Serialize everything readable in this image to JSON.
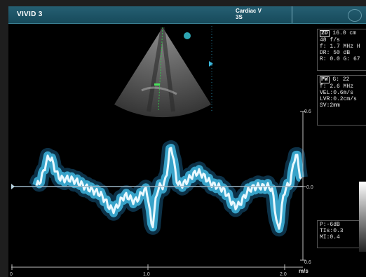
{
  "header": {
    "brand": "VIVID 3",
    "probe_line1": "Cardiac V",
    "probe_line2": "3S"
  },
  "panel_2d": {
    "mode": "2D",
    "depth": "16.0 cm",
    "frame_rate": "48 f/s",
    "freq": "f: 1.7 MHz H",
    "dr": "DR: 50 dB",
    "rg": "R: 0.0   G: 67"
  },
  "panel_pw": {
    "mode": "PW",
    "gain": "G: 22",
    "freq": "f: 2.6 MHz",
    "vel": "VEL:0.6m/s",
    "lvr": "LVR:0.2cm/s",
    "sv": "SV:2mm"
  },
  "output": {
    "p": "P:-6dB",
    "tis": "TIs:0.3",
    "mi": "MI:0.4"
  },
  "spectrum": {
    "scale_top": "0.6",
    "scale_zero": "0.0",
    "scale_bottom": "0.6",
    "unit": "m/s",
    "time_labels": [
      "0",
      "1.0",
      "2.0"
    ]
  },
  "colors": {
    "doppler_bright": "#eaf9ff",
    "doppler_cyan": "#41b7e0",
    "doppler_deep": "#155a82",
    "header": "#1d5669"
  }
}
